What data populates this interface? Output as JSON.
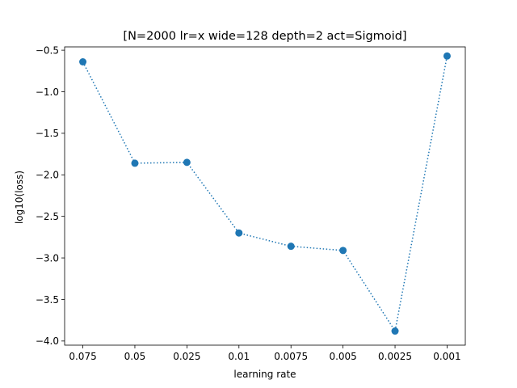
{
  "chart_data": {
    "type": "line",
    "title": "[N=2000 lr=x wide=128 depth=2 act=Sigmoid]",
    "xlabel": "learning rate",
    "ylabel": "log10(loss)",
    "categories": [
      "0.075",
      "0.05",
      "0.025",
      "0.01",
      "0.0075",
      "0.005",
      "0.0025",
      "0.001"
    ],
    "series": [
      {
        "values": [
          -0.64,
          -1.86,
          -1.85,
          -2.7,
          -2.86,
          -2.91,
          -3.88,
          -0.57
        ],
        "color": "#1f77b4",
        "line_style": "dotted",
        "marker": "circle"
      }
    ],
    "ylim": [
      -4.05,
      -0.46
    ],
    "yticks": [
      -4.0,
      -3.5,
      -3.0,
      -2.5,
      -2.0,
      -1.5,
      -1.0,
      -0.5
    ],
    "ytick_labels": [
      "−4.0",
      "−3.5",
      "−3.0",
      "−2.5",
      "−2.0",
      "−1.5",
      "−1.0",
      "−0.5"
    ],
    "grid": false,
    "legend": false
  }
}
